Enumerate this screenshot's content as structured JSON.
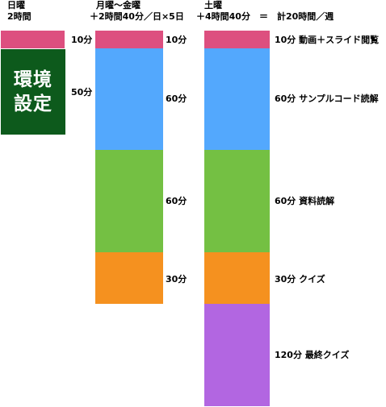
{
  "colors": {
    "video": "#dd4f7f",
    "sample_code": "#53a8fd",
    "docs": "#74c043",
    "quiz": "#f5911f",
    "final_quiz": "#b266e1",
    "setup": "#0d5a1c"
  },
  "sunday": {
    "header_line1": "日曜",
    "header_line2": "2時間",
    "setup_label": "環境設定",
    "video_time": "10分",
    "setup_time": "50分"
  },
  "weekday": {
    "header_line1": "月曜～金曜",
    "header_line2": "＋2時間40分／日×5日",
    "video_time": "10分",
    "sample_time": "60分",
    "docs_time": "60分",
    "quiz_time": "30分"
  },
  "saturday": {
    "header_line1": "土曜",
    "header_line2": "＋4時間40分　＝　計20時間／週",
    "video_label": "10分  動画＋スライド閲覧",
    "sample_label": "60分  サンプルコード読解",
    "docs_label": "60分  資料読解",
    "quiz_label": "30分  クイズ",
    "final_label": "120分  最終クイズ"
  }
}
